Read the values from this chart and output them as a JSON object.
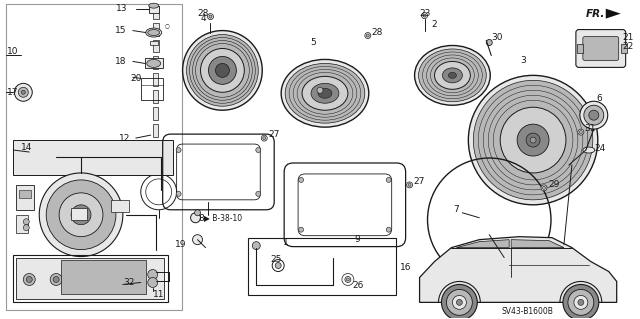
{
  "background_color": "#ffffff",
  "diagram_id": "SV43-B1600B",
  "line_color": "#1a1a1a",
  "text_color": "#1a1a1a",
  "font_size": 6.5,
  "gray_fill": "#d0d0d0",
  "light_gray": "#e8e8e8",
  "med_gray": "#b8b8b8",
  "dark_gray": "#888888"
}
